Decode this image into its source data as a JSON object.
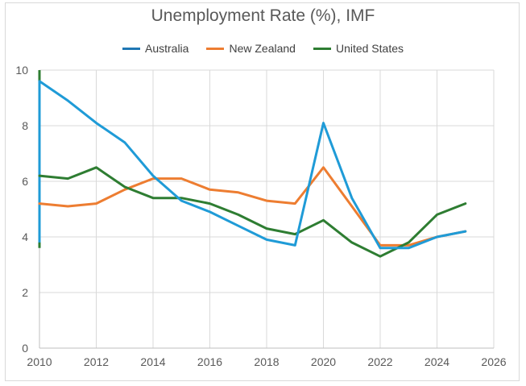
{
  "chart_data": {
    "type": "line",
    "title": "Unemployment Rate (%), IMF",
    "xlabel": "",
    "ylabel": "",
    "xlim": [
      2010,
      2026
    ],
    "ylim": [
      0,
      10
    ],
    "x_ticks": [
      "2010",
      "2012",
      "2014",
      "2016",
      "2018",
      "2020",
      "2022",
      "2024",
      "2026"
    ],
    "y_ticks": [
      "0",
      "2",
      "4",
      "6",
      "8",
      "10"
    ],
    "legend_position": "top",
    "series": [
      {
        "name": "Australia",
        "color": "#1f9bd7",
        "legend_color": "#1f77b4",
        "x": [
          2010,
          2011,
          2012,
          2013,
          2014,
          2015,
          2016,
          2017,
          2018,
          2019,
          2020,
          2021,
          2022,
          2023,
          2024,
          2025
        ],
        "values": [
          9.6,
          8.9,
          8.1,
          7.4,
          6.2,
          5.3,
          4.9,
          4.4,
          3.9,
          3.7,
          8.1,
          5.4,
          3.6,
          3.6,
          4.0,
          4.2
        ]
      },
      {
        "name": "New Zealand",
        "color": "#ed7d31",
        "legend_color": "#ed7d31",
        "x": [
          2010,
          2011,
          2012,
          2013,
          2014,
          2015,
          2016,
          2017,
          2018,
          2019,
          2020,
          2021,
          2022,
          2023,
          2024,
          2025
        ],
        "values": [
          5.2,
          5.1,
          5.2,
          5.7,
          6.1,
          6.1,
          5.7,
          5.6,
          5.3,
          5.2,
          6.5,
          5.1,
          3.7,
          3.7,
          4.0,
          4.2
        ]
      },
      {
        "name": "United States",
        "color": "#2e7d32",
        "legend_color": "#2e7d32",
        "x": [
          2010,
          2011,
          2012,
          2013,
          2014,
          2015,
          2016,
          2017,
          2018,
          2019,
          2020,
          2021,
          2022,
          2023,
          2024,
          2025
        ],
        "values": [
          6.2,
          6.1,
          6.5,
          5.8,
          5.4,
          5.4,
          5.2,
          4.8,
          4.3,
          4.1,
          4.6,
          3.8,
          3.3,
          3.8,
          4.8,
          5.2
        ]
      }
    ]
  }
}
